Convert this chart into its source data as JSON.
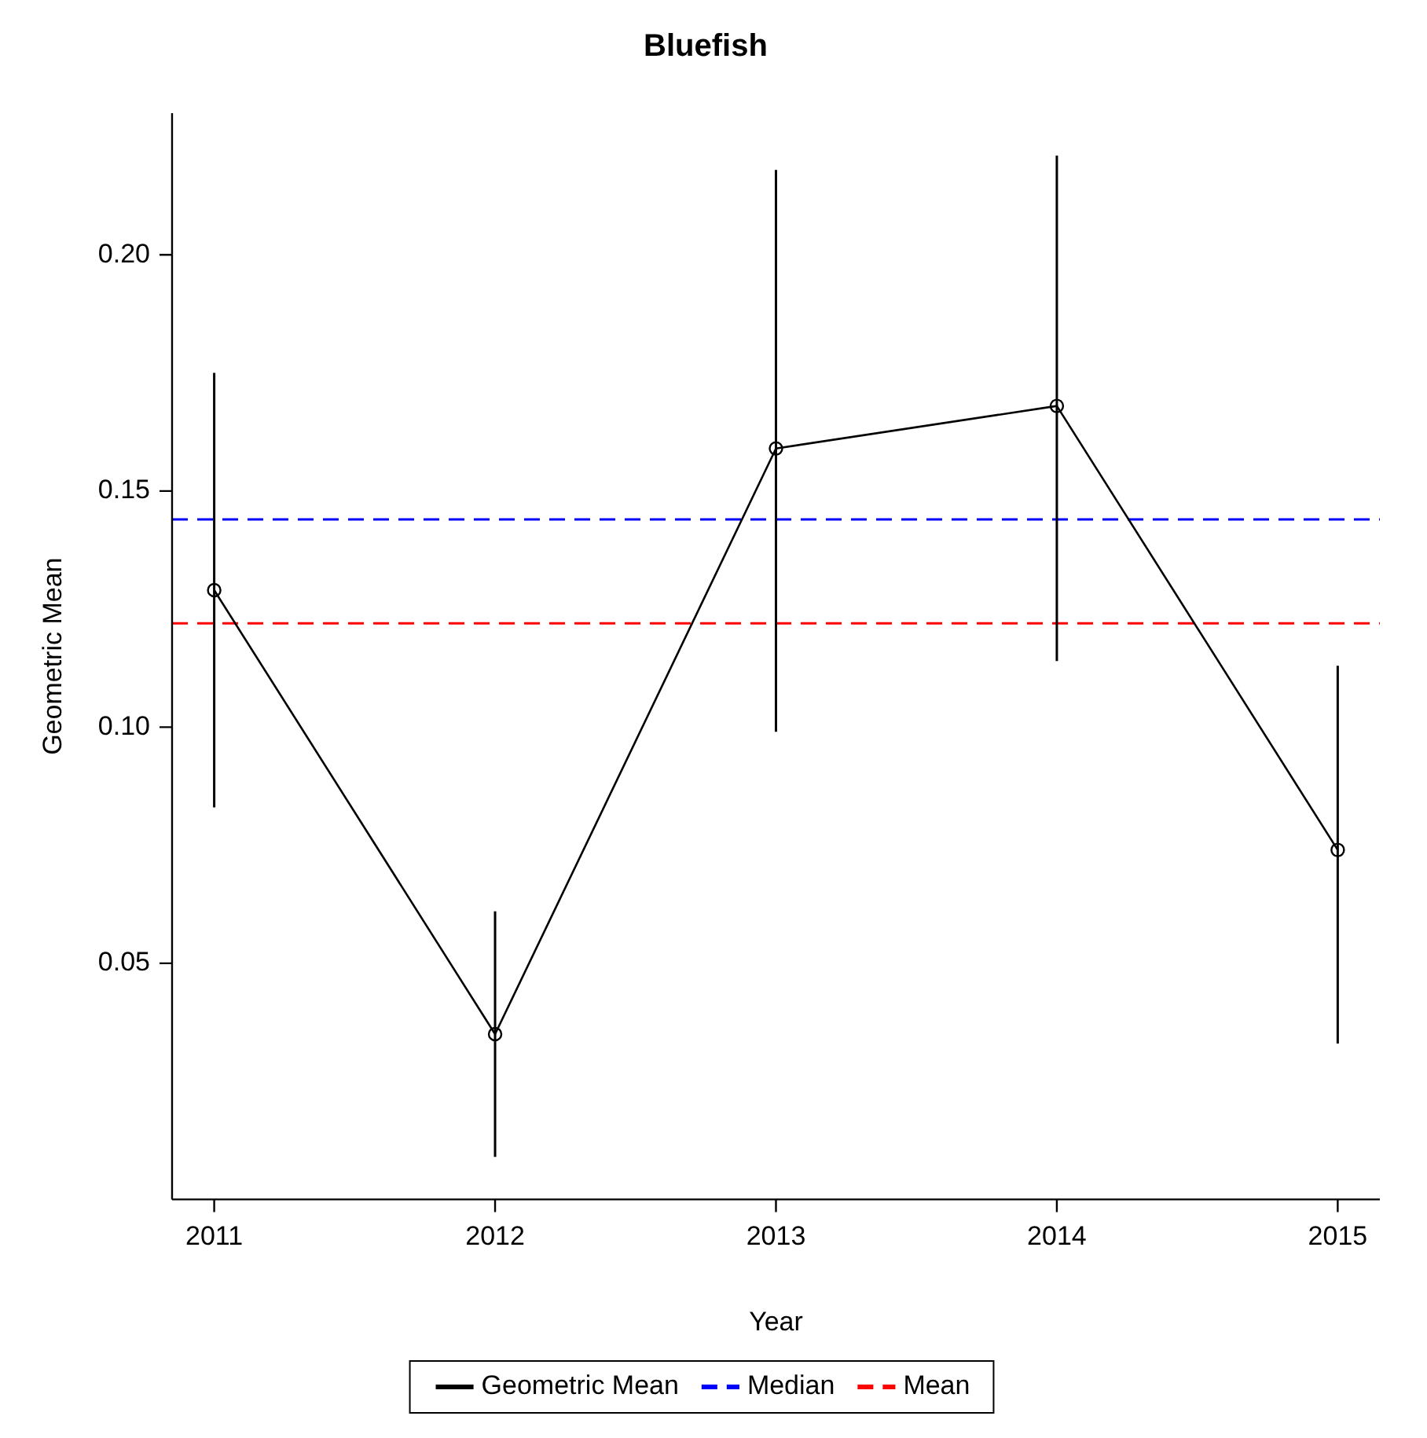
{
  "chart_data": {
    "type": "line",
    "title": "Bluefish",
    "xlabel": "Year",
    "ylabel": "Geometric Mean",
    "x": [
      2011,
      2012,
      2013,
      2014,
      2015
    ],
    "series": [
      {
        "name": "Geometric Mean",
        "color": "#000000",
        "values": [
          0.129,
          0.035,
          0.159,
          0.168,
          0.074
        ],
        "errors": [
          [
            0.083,
            0.175
          ],
          [
            0.009,
            0.061
          ],
          [
            0.099,
            0.218
          ],
          [
            0.114,
            0.221
          ],
          [
            0.033,
            0.113
          ]
        ]
      }
    ],
    "ref_lines": [
      {
        "axis": "y",
        "value": 0.144,
        "label": "Median",
        "color": "#0000ff",
        "line_style": "dashed"
      },
      {
        "axis": "y",
        "value": 0.122,
        "label": "Mean",
        "color": "#ff0000",
        "line_style": "dashed"
      }
    ],
    "xlim": [
      2010.85,
      2015.15
    ],
    "xticks": [
      2011,
      2012,
      2013,
      2014,
      2015
    ],
    "ylim": [
      0,
      0.23
    ],
    "yticks": [
      {
        "value": 0.05,
        "label": "0.05"
      },
      {
        "value": 0.1,
        "label": "0.10"
      },
      {
        "value": 0.15,
        "label": "0.15"
      },
      {
        "value": 0.2,
        "label": "0.20"
      }
    ],
    "grid": false,
    "legend": "bottom",
    "marker": "circle",
    "line_style": "solid"
  }
}
